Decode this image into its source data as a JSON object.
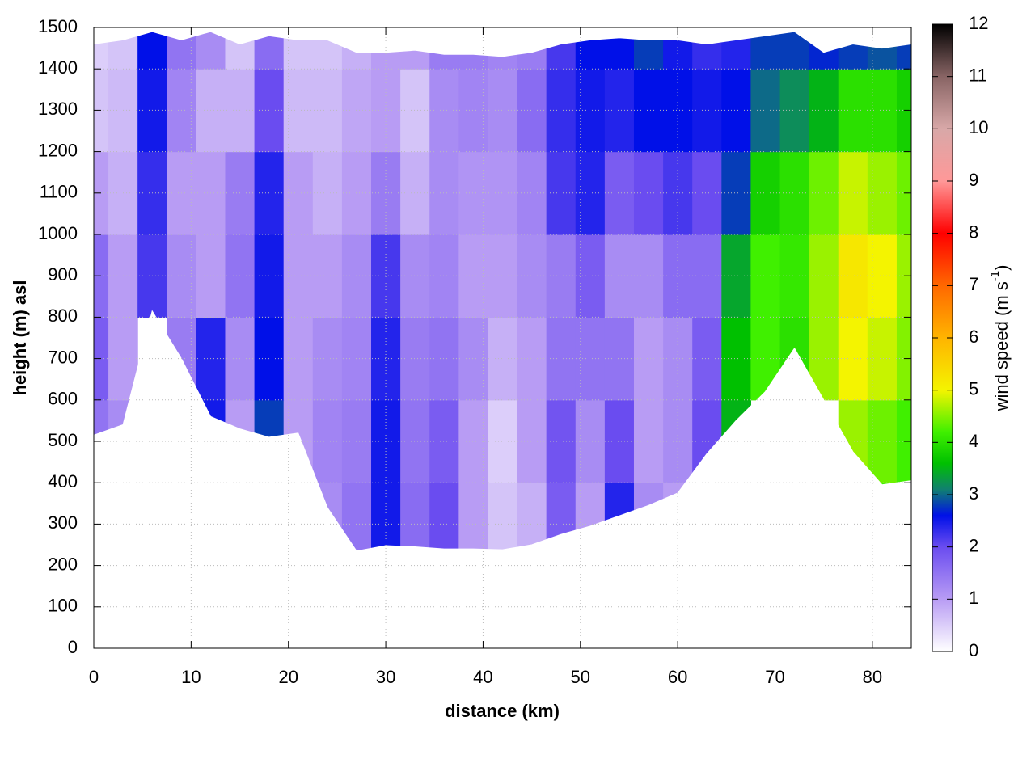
{
  "chart_data": {
    "type": "section",
    "xlabel": "distance (km)",
    "ylabel": "height (m) asl",
    "colorbar_label": [
      "wind speed (m s",
      "-1",
      ")"
    ],
    "xlim": [
      0,
      84
    ],
    "ylim": [
      0,
      1500
    ],
    "xticks": [
      0,
      10,
      20,
      30,
      40,
      50,
      60,
      70,
      80
    ],
    "yticks": [
      0,
      100,
      200,
      300,
      400,
      500,
      600,
      700,
      800,
      900,
      1000,
      1100,
      1200,
      1300,
      1400,
      1500
    ],
    "grid": true,
    "clim": [
      0,
      12
    ],
    "cticks": [
      0,
      1,
      2,
      3,
      4,
      5,
      6,
      7,
      8,
      9,
      10,
      11,
      12
    ],
    "colorscale": [
      [
        0,
        "#ffffff"
      ],
      [
        1,
        "#b89cf4"
      ],
      [
        2,
        "#6a4cf0"
      ],
      [
        2.6,
        "#0010e8"
      ],
      [
        3.1,
        "#108070"
      ],
      [
        3.6,
        "#00c000"
      ],
      [
        4.2,
        "#40f000"
      ],
      [
        5,
        "#f4f400"
      ],
      [
        6,
        "#ffb400"
      ],
      [
        7,
        "#ff6800"
      ],
      [
        8,
        "#ff0000"
      ],
      [
        9,
        "#ff9898"
      ],
      [
        10,
        "#d8a8a8"
      ],
      [
        11,
        "#886464"
      ],
      [
        12,
        "#000000"
      ]
    ],
    "x": [
      0,
      3,
      6,
      9,
      12,
      15,
      18,
      21,
      24,
      27,
      30,
      33,
      36,
      39,
      42,
      45,
      48,
      51,
      54,
      57,
      60,
      63,
      66,
      69,
      72,
      75,
      78,
      81,
      84
    ],
    "ground": [
      515,
      540,
      815,
      700,
      560,
      530,
      510,
      520,
      340,
      235,
      248,
      245,
      240,
      240,
      238,
      250,
      275,
      295,
      320,
      345,
      375,
      470,
      550,
      620,
      725,
      600,
      475,
      395,
      405
    ],
    "top": [
      1460,
      1470,
      1490,
      1470,
      1490,
      1460,
      1480,
      1470,
      1470,
      1440,
      1440,
      1445,
      1435,
      1435,
      1430,
      1440,
      1460,
      1470,
      1475,
      1470,
      1470,
      1460,
      1470,
      1480,
      1490,
      1440,
      1460,
      1450,
      1460
    ],
    "levels": [
      200,
      400,
      600,
      800,
      1000,
      1200,
      1400,
      1500
    ],
    "z": [
      [
        null,
        null,
        null,
        null,
        null,
        null,
        null,
        null,
        1.2,
        1.5,
        2.5,
        1.6,
        2.0,
        1.0,
        0.6,
        0.8,
        1.8,
        1.0,
        2.4,
        1.2,
        1.0,
        null,
        null,
        null,
        null,
        null,
        null,
        4.2,
        null
      ],
      [
        1.5,
        1.2,
        null,
        null,
        2.5,
        1.0,
        2.8,
        1.0,
        1.3,
        1.4,
        2.5,
        1.5,
        1.8,
        1.0,
        0.5,
        1.0,
        1.9,
        1.2,
        2.0,
        1.0,
        1.2,
        2.0,
        3.5,
        null,
        null,
        null,
        4.6,
        4.4,
        4.2
      ],
      [
        1.8,
        1.0,
        null,
        1.4,
        2.4,
        1.2,
        2.6,
        1.0,
        1.2,
        1.3,
        2.4,
        1.4,
        1.5,
        1.2,
        0.8,
        1.0,
        1.5,
        1.5,
        1.5,
        1.0,
        1.2,
        1.8,
        3.6,
        4.2,
        4.0,
        4.6,
        5.0,
        4.8,
        4.5
      ],
      [
        1.6,
        1.0,
        2.2,
        1.2,
        1.0,
        1.5,
        2.5,
        1.0,
        1.0,
        1.2,
        2.2,
        1.2,
        1.3,
        1.0,
        1.0,
        1.2,
        1.4,
        1.8,
        1.2,
        1.2,
        1.6,
        1.6,
        3.4,
        4.2,
        4.1,
        4.6,
        5.2,
        5.0,
        4.6
      ],
      [
        1.0,
        0.8,
        2.3,
        1.0,
        1.0,
        1.4,
        2.4,
        1.0,
        0.8,
        1.0,
        1.4,
        0.8,
        1.2,
        1.1,
        1.1,
        1.3,
        2.2,
        2.4,
        1.8,
        2.0,
        2.2,
        2.0,
        2.8,
        3.8,
        4.0,
        4.4,
        4.8,
        4.6,
        4.4
      ],
      [
        0.6,
        0.7,
        2.5,
        1.3,
        0.8,
        0.8,
        2.0,
        0.7,
        0.7,
        0.9,
        1.0,
        0.6,
        1.2,
        1.3,
        1.2,
        1.6,
        2.3,
        2.5,
        2.4,
        2.6,
        2.6,
        2.5,
        2.6,
        3.0,
        3.2,
        3.5,
        4.0,
        4.0,
        3.8
      ],
      [
        0.5,
        0.6,
        2.6,
        1.5,
        1.2,
        0.6,
        1.6,
        0.6,
        0.6,
        0.8,
        1.0,
        1.0,
        1.4,
        1.4,
        1.3,
        1.4,
        2.2,
        2.6,
        2.6,
        2.8,
        2.5,
        2.3,
        2.4,
        2.8,
        2.8,
        2.7,
        2.8,
        2.9,
        2.8
      ]
    ]
  }
}
